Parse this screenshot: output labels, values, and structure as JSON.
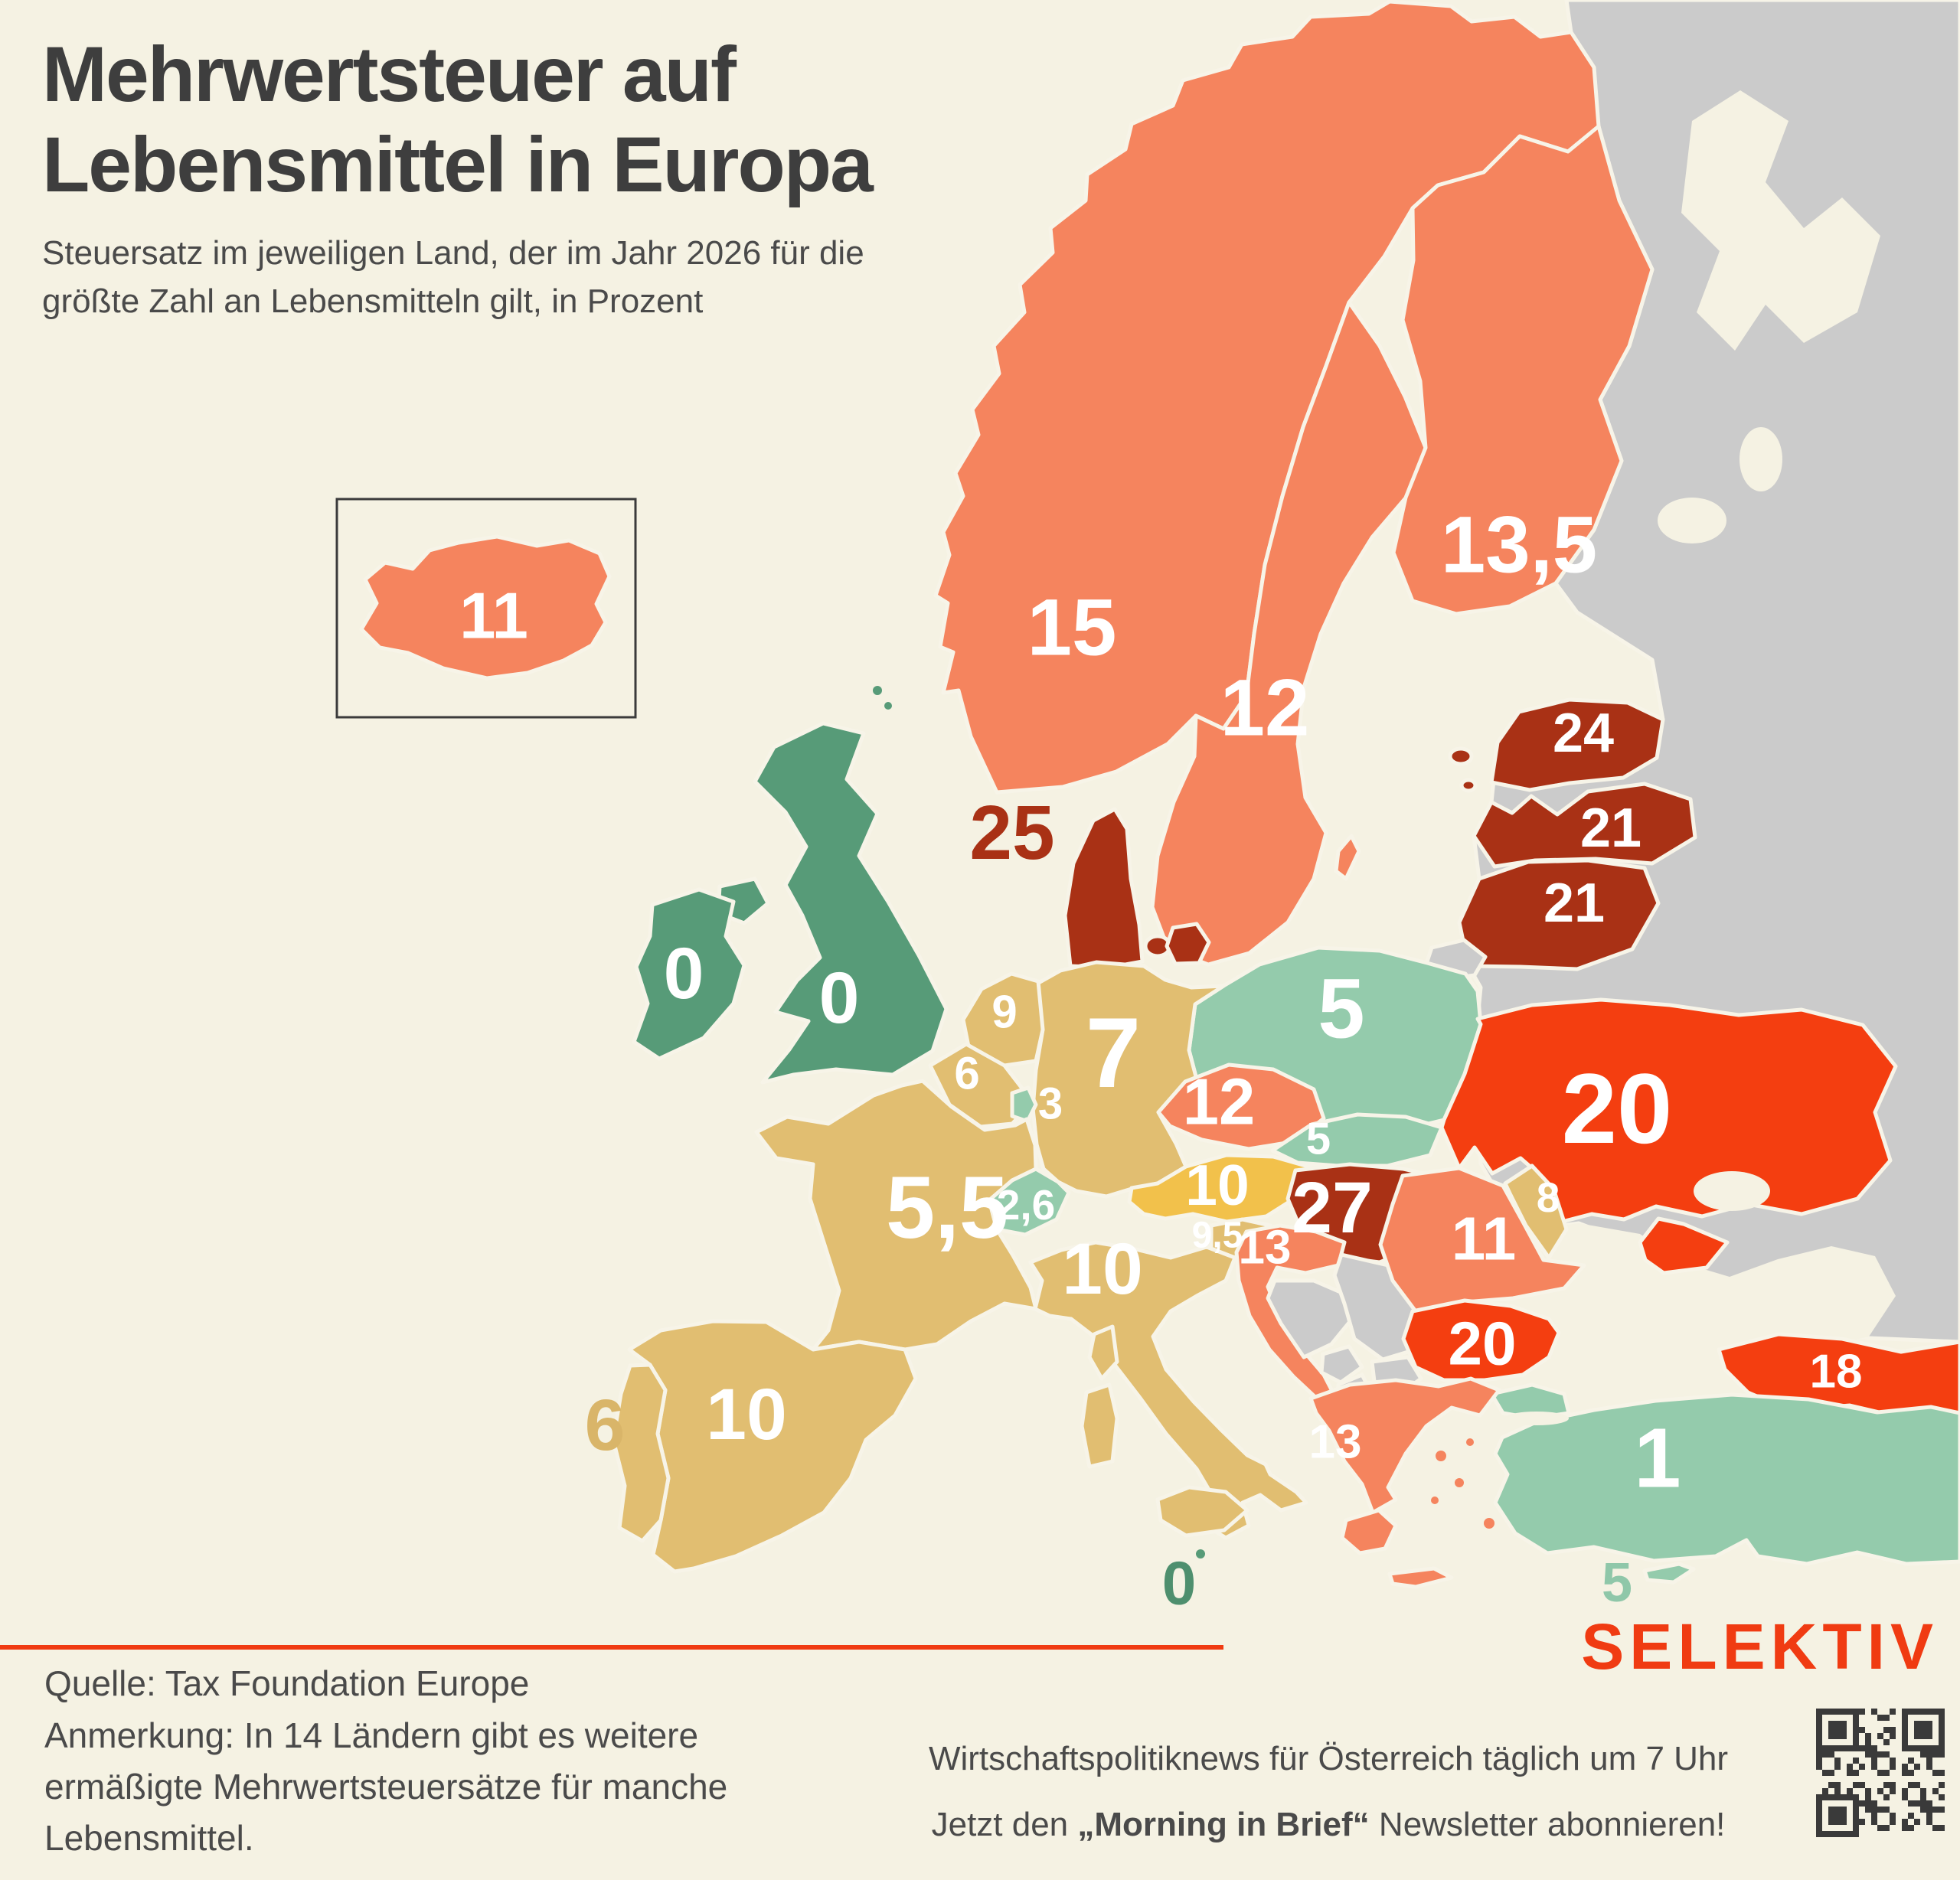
{
  "title": {
    "line1": "Mehrwertsteuer auf",
    "line2": "Lebensmittel in Europa"
  },
  "subtitle": {
    "line1": "Steuersatz im jeweiligen Land, der im Jahr 2026 für die",
    "line2": "größte Zahl an Lebensmitteln gilt, in Prozent"
  },
  "map": {
    "unit": "Prozent",
    "year": "2026",
    "countries": [
      {
        "name": "Island",
        "value": "11",
        "group": "salmon"
      },
      {
        "name": "Norwegen",
        "value": "15",
        "group": "salmon"
      },
      {
        "name": "Schweden",
        "value": "12",
        "group": "salmon"
      },
      {
        "name": "Finnland",
        "value": "13,5",
        "group": "salmon"
      },
      {
        "name": "Dänemark",
        "value": "25",
        "group": "brick"
      },
      {
        "name": "Estland",
        "value": "24",
        "group": "brick"
      },
      {
        "name": "Lettland",
        "value": "21",
        "group": "brick"
      },
      {
        "name": "Litauen",
        "value": "21",
        "group": "brick"
      },
      {
        "name": "Irland",
        "value": "0",
        "group": "green"
      },
      {
        "name": "Vereinigtes Königreich",
        "value": "0",
        "group": "green"
      },
      {
        "name": "Niederlande",
        "value": "9",
        "group": "tan"
      },
      {
        "name": "Belgien",
        "value": "6",
        "group": "tan"
      },
      {
        "name": "Luxemburg",
        "value": "3",
        "group": "teal"
      },
      {
        "name": "Deutschland",
        "value": "7",
        "group": "tan"
      },
      {
        "name": "Frankreich",
        "value": "5,5",
        "group": "tan"
      },
      {
        "name": "Schweiz",
        "value": "2,6",
        "group": "teal"
      },
      {
        "name": "Österreich",
        "value": "10",
        "group": "amber"
      },
      {
        "name": "Tschechien",
        "value": "12",
        "group": "salmon"
      },
      {
        "name": "Polen",
        "value": "5",
        "group": "teal"
      },
      {
        "name": "Slowakei",
        "value": "5",
        "group": "teal"
      },
      {
        "name": "Ungarn",
        "value": "27",
        "group": "brick"
      },
      {
        "name": "Slowenien",
        "value": "9,5",
        "group": "tan"
      },
      {
        "name": "Kroatien",
        "value": "13",
        "group": "salmon"
      },
      {
        "name": "Italien",
        "value": "10",
        "group": "tan"
      },
      {
        "name": "Spanien",
        "value": "10",
        "group": "tan"
      },
      {
        "name": "Portugal",
        "value": "6",
        "group": "tan"
      },
      {
        "name": "Malta",
        "value": "0",
        "group": "green"
      },
      {
        "name": "Griechenland",
        "value": "13",
        "group": "salmon"
      },
      {
        "name": "Türkei",
        "value": "1",
        "group": "teal"
      },
      {
        "name": "Zypern",
        "value": "5",
        "group": "teal"
      },
      {
        "name": "Ukraine",
        "value": "20",
        "group": "red"
      },
      {
        "name": "Moldau",
        "value": "8",
        "group": "tan"
      },
      {
        "name": "Rumänien",
        "value": "11",
        "group": "salmon"
      },
      {
        "name": "Bulgarien",
        "value": "20",
        "group": "red"
      },
      {
        "name": "Georgien",
        "value": "18",
        "group": "red"
      }
    ]
  },
  "colors": {
    "background": "#F5F2E3",
    "no_data_gray": "#CBCBCB",
    "salmon": "#F5845E",
    "brick_dark_red": "#A93115",
    "bright_red": "#F43E10",
    "tan_gold": "#E1BE71",
    "austria_amber": "#F2C14B",
    "light_teal": "#94CBAC",
    "green_zero": "#579B78",
    "brand_orange": "#F03B12",
    "text_dark": "#3E3E3E"
  },
  "footer": {
    "source": "Quelle: Tax Foundation Europe",
    "note_line1": "Anmerkung: In 14 Ländern gibt es weitere",
    "note_line2": "ermäßigte Mehrwertsteuersätze für manche",
    "note_line3": "Lebensmittel.",
    "newsletter_line1": "Wirtschaftspolitiknews für Österreich täglich um 7 Uhr",
    "newsletter_line2_pre": "Jetzt den ",
    "newsletter_line2_bold": "„Morning in Brief“",
    "newsletter_line2_post": " Newsletter abonnieren!",
    "logo": "SELEKTIV"
  }
}
